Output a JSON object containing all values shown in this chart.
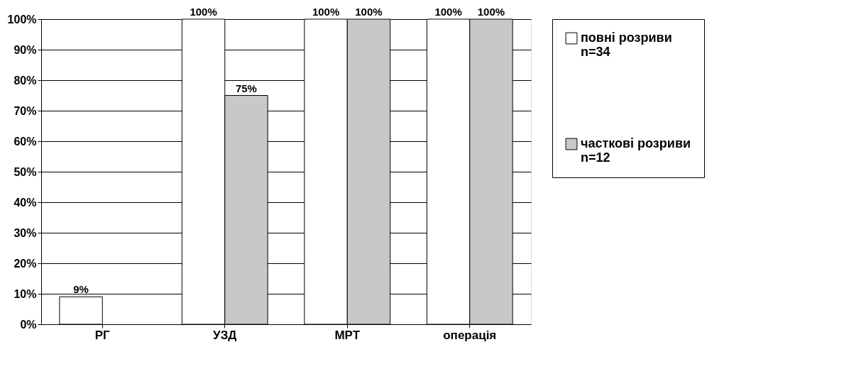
{
  "chart_data": {
    "type": "bar",
    "categories": [
      "РГ",
      "УЗД",
      "МРТ",
      "операція"
    ],
    "series": [
      {
        "name": "повні розриви n=34",
        "color": "#ffffff",
        "values": [
          9,
          100,
          100,
          100
        ],
        "value_labels": [
          "9%",
          "100%",
          "100%",
          "100%"
        ]
      },
      {
        "name": "часткові розриви n=12",
        "color": "#c8c8c8",
        "values": [
          0,
          75,
          100,
          100
        ],
        "value_labels": [
          null,
          "75%",
          "100%",
          "100%"
        ]
      }
    ],
    "ylim": [
      0,
      100
    ],
    "yticks": [
      {
        "value": 0,
        "label": "0%"
      },
      {
        "value": 10,
        "label": "10%"
      },
      {
        "value": 20,
        "label": "20%"
      },
      {
        "value": 30,
        "label": "30%"
      },
      {
        "value": 40,
        "label": "40%"
      },
      {
        "value": 50,
        "label": "50%"
      },
      {
        "value": 60,
        "label": "60%"
      },
      {
        "value": 70,
        "label": "70%"
      },
      {
        "value": 80,
        "label": "80%"
      },
      {
        "value": 90,
        "label": "90%"
      },
      {
        "value": 100,
        "label": "100%"
      }
    ],
    "grid": "y",
    "legend": "right"
  }
}
